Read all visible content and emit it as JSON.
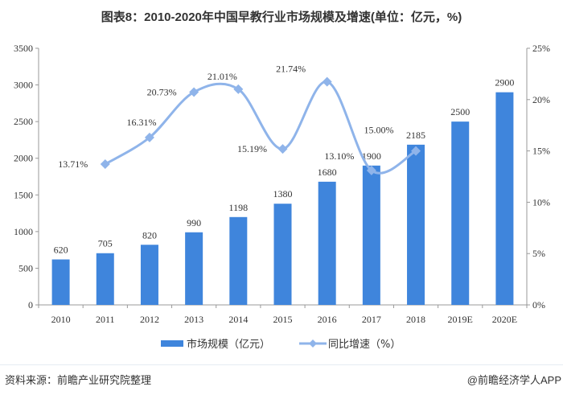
{
  "title": "图表8：2010-2020年中国早教行业市场规模及增速(单位：亿元，%)",
  "source": "资料来源：前瞻产业研究院整理",
  "credit": "@前瞻经济学人APP",
  "chart_data": {
    "type": "bar+line",
    "title": "图表8：2010-2020年中国早教行业市场规模及增速(单位：亿元，%)",
    "categories": [
      "2010",
      "2011",
      "2012",
      "2013",
      "2014",
      "2015",
      "2016",
      "2017",
      "2018",
      "2019E",
      "2020E"
    ],
    "series": [
      {
        "name": "市场规模（亿元）",
        "type": "bar",
        "axis": "left",
        "color": "#3f85dc",
        "values": [
          620,
          705,
          820,
          990,
          1198,
          1380,
          1680,
          1900,
          2185,
          2500,
          2900
        ]
      },
      {
        "name": "同比增速（%）",
        "type": "line",
        "axis": "right",
        "color": "#8fb4ea",
        "values": [
          null,
          13.71,
          16.31,
          20.73,
          21.01,
          15.19,
          21.74,
          13.1,
          15.0,
          null,
          null
        ],
        "labels": [
          "",
          "13.71%",
          "16.31%",
          "20.73%",
          "21.01%",
          "15.19%",
          "21.74%",
          "13.10%",
          "15.00%",
          "",
          ""
        ]
      }
    ],
    "left_axis": {
      "range": [
        0,
        3500
      ],
      "ticks": [
        "0",
        "500",
        "1000",
        "1500",
        "2000",
        "2500",
        "3000",
        "3500"
      ]
    },
    "right_axis": {
      "range": [
        0,
        25
      ],
      "ticks": [
        "0%",
        "5%",
        "10%",
        "15%",
        "20%",
        "25%"
      ]
    },
    "grid": false,
    "legend": "bottom"
  }
}
